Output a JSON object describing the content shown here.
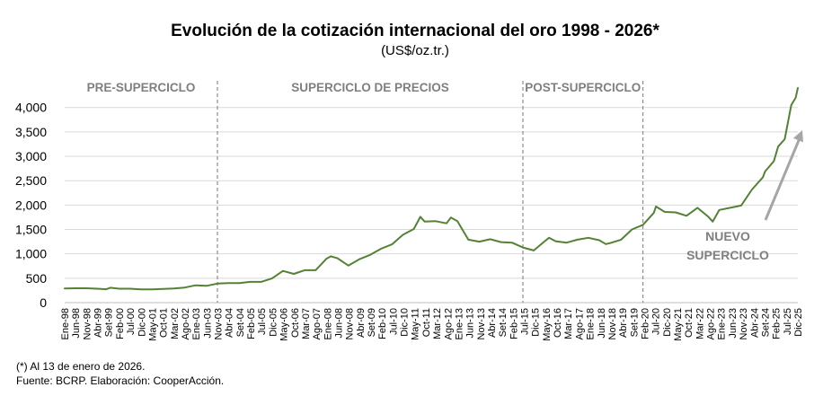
{
  "chart_data": {
    "type": "line",
    "title": "Evolución de la cotización internacional del oro 1998  - 2026*",
    "subtitle": "(US$/oz.tr.)",
    "xlabel": "",
    "ylabel": "",
    "ylim": [
      0,
      4400
    ],
    "yticks": [
      0,
      500,
      1000,
      1500,
      2000,
      2500,
      3000,
      3500,
      4000
    ],
    "ytick_labels": [
      "0",
      "500",
      "1,000",
      "1,500",
      "2,000",
      "2,500",
      "3,000",
      "3,500",
      "4,000"
    ],
    "grid": "horizontal",
    "line_color": "#548235",
    "x_tick_labels": [
      "Ene-98",
      "Jun-98",
      "Nov-98",
      "Abr-99",
      "Set-99",
      "Feb-00",
      "Jul-00",
      "Dic-00",
      "May-01",
      "Oct-01",
      "Mar-02",
      "Ago-02",
      "Ene-03",
      "Jun-03",
      "Nov-03",
      "Abr-04",
      "Set-04",
      "Feb-05",
      "Jul-05",
      "Dic-05",
      "May-06",
      "Oct-06",
      "Mar-07",
      "Ago-07",
      "Ene-08",
      "Jun-08",
      "Nov-08",
      "Abr-09",
      "Set-09",
      "Feb-10",
      "Jul-10",
      "Dic-10",
      "May-11",
      "Oct-11",
      "Mar-12",
      "Ago-12",
      "Ene-13",
      "Jun-13",
      "Nov-13",
      "Abr-14",
      "Set-14",
      "Feb-15",
      "Jul-15",
      "Dic-15",
      "May-16",
      "Oct-16",
      "Mar-17",
      "Ago-17",
      "Ene-18",
      "Jun-18",
      "Nov-18",
      "Abr-19",
      "Set-19",
      "Feb-20",
      "Jul-20",
      "Dic-20",
      "May-21",
      "Oct-21",
      "Mar-22",
      "Ago-22",
      "Ene-23",
      "Jun-23",
      "Nov-23",
      "Abr-24",
      "Set-24",
      "Feb-25",
      "Jul-25",
      "Dic-25"
    ],
    "series": [
      {
        "x": [
          "1998-01",
          "1998-06",
          "1998-11",
          "1999-04",
          "1999-08",
          "1999-10",
          "2000-02",
          "2000-07",
          "2000-12",
          "2001-05",
          "2001-10",
          "2002-03",
          "2002-08",
          "2003-01",
          "2003-06",
          "2003-11",
          "2004-04",
          "2004-09",
          "2005-02",
          "2005-07",
          "2005-12",
          "2006-05",
          "2006-10",
          "2007-03",
          "2007-08",
          "2008-01",
          "2008-03",
          "2008-06",
          "2008-11",
          "2009-04",
          "2009-09",
          "2010-02",
          "2010-07",
          "2010-12",
          "2011-05",
          "2011-08",
          "2011-10",
          "2012-03",
          "2012-08",
          "2012-10",
          "2013-01",
          "2013-06",
          "2013-11",
          "2014-04",
          "2014-09",
          "2015-02",
          "2015-07",
          "2015-12",
          "2016-05",
          "2016-07",
          "2016-10",
          "2017-03",
          "2017-08",
          "2018-01",
          "2018-06",
          "2018-09",
          "2018-11",
          "2019-04",
          "2019-09",
          "2020-02",
          "2020-07",
          "2020-08",
          "2020-12",
          "2021-05",
          "2021-10",
          "2022-03",
          "2022-08",
          "2022-10",
          "2023-01",
          "2023-06",
          "2023-11",
          "2024-04",
          "2024-09",
          "2024-10",
          "2025-02",
          "2025-04",
          "2025-07",
          "2025-10",
          "2025-12",
          "2026-01"
        ],
        "values": [
          290,
          295,
          295,
          285,
          275,
          305,
          285,
          285,
          270,
          270,
          280,
          290,
          310,
          355,
          345,
          390,
          400,
          400,
          425,
          425,
          495,
          650,
          590,
          665,
          665,
          900,
          950,
          910,
          760,
          890,
          980,
          1105,
          1195,
          1390,
          1510,
          1760,
          1660,
          1670,
          1625,
          1745,
          1670,
          1290,
          1250,
          1300,
          1240,
          1230,
          1130,
          1070,
          1260,
          1330,
          1260,
          1230,
          1290,
          1330,
          1280,
          1200,
          1220,
          1290,
          1500,
          1595,
          1840,
          1970,
          1860,
          1850,
          1780,
          1945,
          1760,
          1660,
          1900,
          1945,
          1990,
          2320,
          2570,
          2690,
          2900,
          3200,
          3350,
          4050,
          4200,
          4400
        ]
      }
    ],
    "period_labels": [
      "PRE-SUPERCICLO",
      "SUPERCICLO DE PRECIOS",
      "POST-SUPERCICLO"
    ],
    "period_dividers": [
      "2003-11",
      "2015-07",
      "2020-02"
    ],
    "annotation_text": [
      "NUEVO",
      "SUPERCICLO"
    ],
    "annotation_arrow_color": "#a6a6a6",
    "footnotes": [
      "(*) Al 13 de enero de 2026.",
      "Fuente: BCRP.  Elaboración: CooperAcción."
    ]
  }
}
